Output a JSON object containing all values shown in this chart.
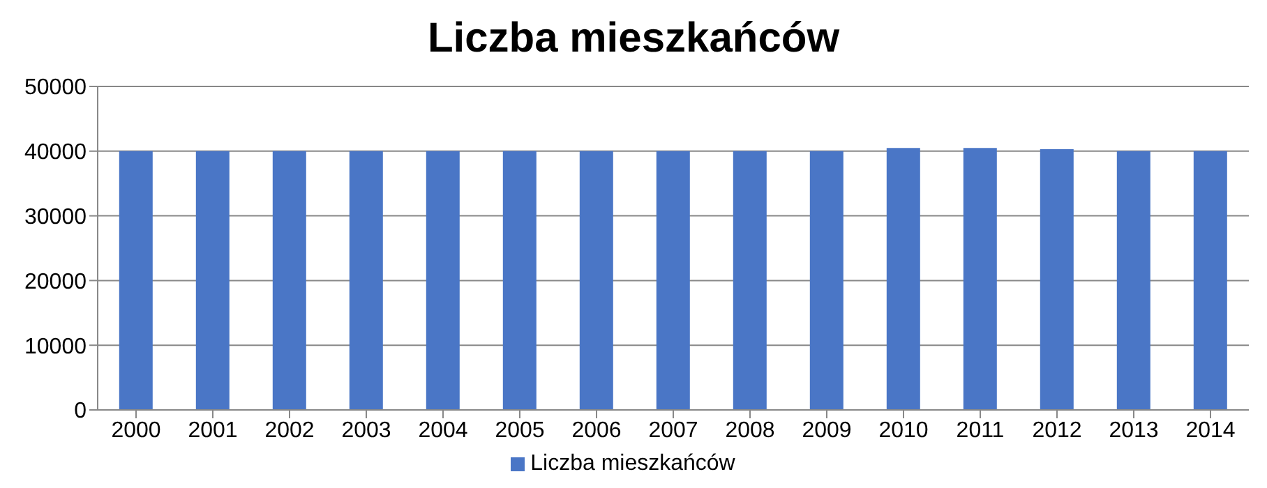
{
  "chart_data": {
    "type": "bar",
    "title": "Liczba mieszkańców",
    "categories": [
      "2000",
      "2001",
      "2002",
      "2003",
      "2004",
      "2005",
      "2006",
      "2007",
      "2008",
      "2009",
      "2010",
      "2011",
      "2012",
      "2013",
      "2014"
    ],
    "series": [
      {
        "name": "Liczba mieszkańców",
        "color": "#4a76c6",
        "values": [
          40000,
          40000,
          40000,
          40000,
          40000,
          40000,
          40000,
          40000,
          40000,
          40000,
          40500,
          40500,
          40300,
          40000,
          40000
        ]
      }
    ],
    "ylim": [
      0,
      50000
    ],
    "yticks": [
      0,
      10000,
      20000,
      30000,
      40000,
      50000
    ],
    "grid": "y",
    "legend": "bottom"
  }
}
